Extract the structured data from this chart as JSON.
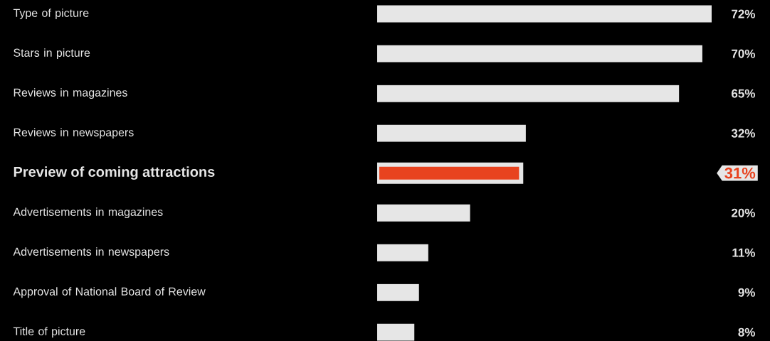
{
  "chart_data": {
    "type": "bar",
    "orientation": "horizontal",
    "categories": [
      "Type of picture",
      "Stars in picture",
      "Reviews in magazines",
      "Reviews in newspapers",
      "Preview of coming attractions",
      "Advertisements in magazines",
      "Advertisements in newspapers",
      "Approval of National Board of Review",
      "Title of picture"
    ],
    "values": [
      72,
      70,
      65,
      32,
      31,
      20,
      11,
      9,
      8
    ],
    "value_labels": [
      "72%",
      "70%",
      "65%",
      "32%",
      "31%",
      "20%",
      "11%",
      "9%",
      "8%"
    ],
    "colors": [
      "#e6e6e6",
      "#e6e6e6",
      "#e6e6e6",
      "#e6e6e6",
      "#e8431f",
      "#e6e6e6",
      "#e6e6e6",
      "#e6e6e6",
      "#e6e6e6"
    ]
  }
}
